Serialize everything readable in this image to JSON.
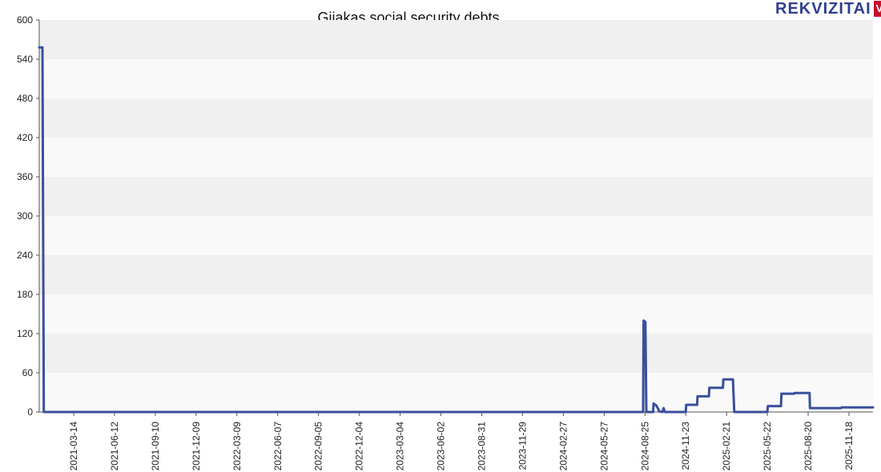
{
  "chart_data": {
    "type": "line",
    "title": "Gijakas social security debts",
    "xlabel": "",
    "ylabel": "",
    "ylim": [
      0,
      600
    ],
    "yticks": [
      0,
      60,
      120,
      180,
      240,
      300,
      360,
      420,
      480,
      540,
      600
    ],
    "xlim": [
      "2020-12-28",
      "2026-01-10"
    ],
    "xticks": [
      "2021-03-14",
      "2021-06-12",
      "2021-09-10",
      "2021-12-09",
      "2022-03-09",
      "2022-06-07",
      "2022-09-05",
      "2022-12-04",
      "2023-03-04",
      "2023-06-02",
      "2023-08-31",
      "2023-11-29",
      "2024-02-27",
      "2024-05-27",
      "2024-08-25",
      "2024-11-23",
      "2025-02-21",
      "2025-05-22",
      "2025-08-20",
      "2025-11-18"
    ],
    "grid": "horizontal bands",
    "legend": "none",
    "line_color": "#3a4f9c",
    "series": [
      {
        "name": "",
        "points": [
          [
            "2020-12-28",
            558
          ],
          [
            "2021-01-04",
            558
          ],
          [
            "2021-01-07",
            0
          ],
          [
            "2024-08-21",
            0
          ],
          [
            "2024-08-22",
            140
          ],
          [
            "2024-08-26",
            138
          ],
          [
            "2024-08-28",
            0
          ],
          [
            "2024-09-12",
            0
          ],
          [
            "2024-09-13",
            13
          ],
          [
            "2024-09-19",
            10
          ],
          [
            "2024-09-23",
            5
          ],
          [
            "2024-09-25",
            1
          ],
          [
            "2024-10-03",
            0
          ],
          [
            "2024-10-05",
            6
          ],
          [
            "2024-10-07",
            2
          ],
          [
            "2024-10-08",
            0
          ],
          [
            "2024-11-23",
            0
          ],
          [
            "2024-11-24",
            11
          ],
          [
            "2024-12-18",
            11
          ],
          [
            "2024-12-19",
            24
          ],
          [
            "2025-01-13",
            24
          ],
          [
            "2025-01-14",
            37
          ],
          [
            "2025-02-13",
            37
          ],
          [
            "2025-02-14",
            50
          ],
          [
            "2025-03-07",
            50
          ],
          [
            "2025-03-10",
            0
          ],
          [
            "2025-05-22",
            0
          ],
          [
            "2025-05-23",
            9
          ],
          [
            "2025-06-21",
            9
          ],
          [
            "2025-06-22",
            28
          ],
          [
            "2025-07-20",
            28
          ],
          [
            "2025-07-21",
            29
          ],
          [
            "2025-08-23",
            29
          ],
          [
            "2025-08-24",
            6
          ],
          [
            "2025-11-01",
            6
          ],
          [
            "2025-11-02",
            7
          ],
          [
            "2026-01-10",
            7
          ]
        ]
      }
    ]
  },
  "brand": {
    "logo_text": "REKVIZITAI",
    "logo_badge": "VŽ"
  }
}
